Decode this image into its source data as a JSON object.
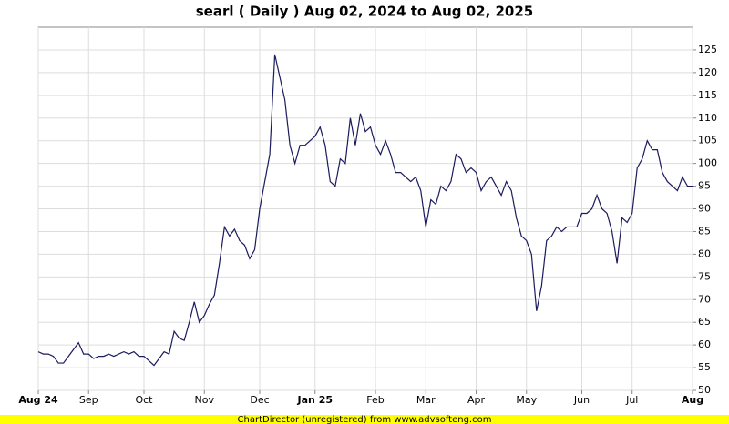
{
  "chart_data": {
    "type": "line",
    "title": "searl ( Daily ) Aug 02, 2024 to Aug 02, 2025",
    "footer": "ChartDirector (unregistered) from www.advsofteng.com",
    "categories": [
      "Aug 24",
      null,
      null,
      null,
      null,
      null,
      null,
      null,
      null,
      null,
      "Sep",
      null,
      null,
      null,
      null,
      null,
      null,
      null,
      null,
      null,
      null,
      "Oct",
      null,
      null,
      null,
      null,
      null,
      null,
      null,
      null,
      null,
      null,
      null,
      "Nov",
      null,
      null,
      null,
      null,
      null,
      null,
      null,
      null,
      null,
      null,
      "Dec",
      null,
      null,
      null,
      null,
      null,
      null,
      null,
      null,
      null,
      null,
      "Jan 25",
      null,
      null,
      null,
      null,
      null,
      null,
      null,
      null,
      null,
      null,
      null,
      "Feb",
      null,
      null,
      null,
      null,
      null,
      null,
      null,
      null,
      null,
      "Mar",
      null,
      null,
      null,
      null,
      null,
      null,
      null,
      null,
      null,
      "Apr",
      null,
      null,
      null,
      null,
      null,
      null,
      null,
      null,
      null,
      "May",
      null,
      null,
      null,
      null,
      null,
      null,
      null,
      null,
      null,
      null,
      "Jun",
      null,
      null,
      null,
      null,
      null,
      null,
      null,
      null,
      null,
      "Jul",
      null,
      null,
      null,
      null,
      null,
      null,
      null,
      null,
      null,
      null,
      null,
      "Aug"
    ],
    "series": [
      {
        "name": "searl",
        "color": "#1a1a5e",
        "values": [
          58.5,
          58,
          58,
          57.5,
          56,
          56,
          57.5,
          59,
          60.5,
          58,
          58,
          57,
          57.5,
          57.5,
          58,
          57.5,
          58,
          58.5,
          58,
          58.5,
          57.5,
          57.5,
          56.5,
          55.5,
          57,
          58.5,
          58,
          63,
          61.5,
          61,
          65,
          69.5,
          65,
          66.5,
          69,
          71,
          78,
          86,
          84,
          85.5,
          83,
          82,
          79,
          81,
          90,
          96,
          102,
          124,
          119,
          114,
          104,
          100,
          104,
          104,
          105,
          106,
          108,
          104,
          96,
          95,
          101,
          100,
          110,
          104,
          111,
          107,
          108,
          104,
          102,
          105,
          102,
          98,
          98,
          97,
          96,
          97,
          94,
          86,
          92,
          91,
          95,
          94,
          96,
          102,
          101,
          98,
          99,
          98,
          94,
          96,
          97,
          95,
          93,
          96,
          94,
          88,
          84,
          83,
          80,
          67.5,
          73,
          83,
          84,
          86,
          85,
          86,
          86,
          86,
          89,
          89,
          90,
          93,
          90,
          89,
          85,
          78,
          88,
          87,
          89,
          99,
          101,
          105,
          103,
          103,
          98,
          96,
          95,
          94,
          97,
          95,
          95
        ]
      }
    ],
    "ylim": [
      50,
      130
    ],
    "yticks": [
      50,
      55,
      60,
      65,
      70,
      75,
      80,
      85,
      90,
      95,
      100,
      105,
      110,
      115,
      120,
      125
    ],
    "grid": true
  }
}
